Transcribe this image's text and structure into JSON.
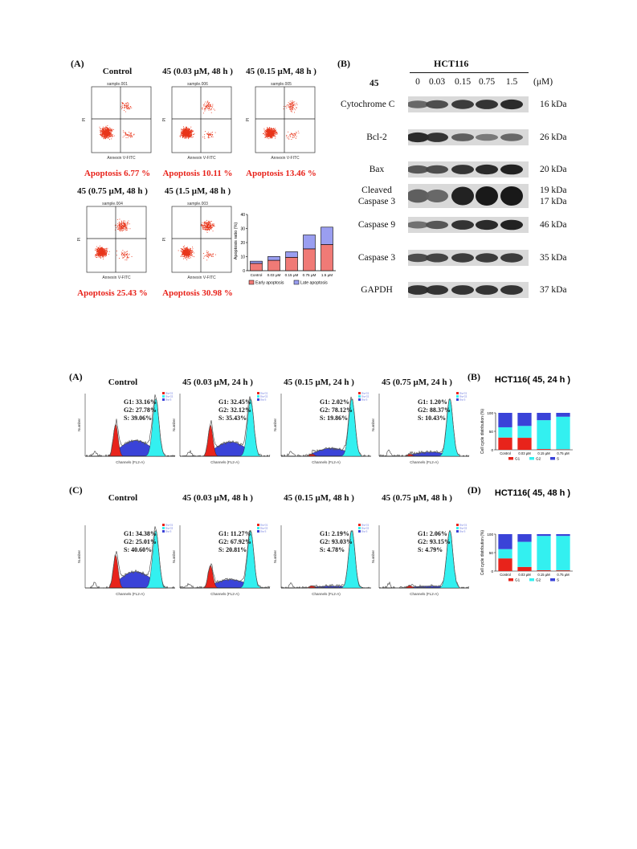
{
  "fig1": {
    "panelA": "(A)",
    "panelB": "(B)",
    "flow_titles": [
      "Control",
      "45 (0.03 μM, 48 h )",
      "45 (0.15 μM, 48 h )",
      "45 (0.75 μM, 48 h )",
      "45 (1.5 μM, 48 h )"
    ],
    "sample_names": [
      "sample.001",
      "sample.006",
      "sample.005",
      "sample.004",
      "sample.003"
    ],
    "apoptosis_labels": [
      "Apoptosis 6.77 %",
      "Apoptosis 10.11 %",
      "Apoptosis 13.46 %",
      "Apoptosis 25.43 %",
      "Apoptosis 30.98 %"
    ],
    "flow_xlabel": "Annexin V-FITC",
    "flow_ylabel": "PI"
  },
  "western": {
    "cell_line": "HCT116",
    "compound": "45",
    "doses": [
      "0",
      "0.03",
      "0.15",
      "0.75",
      "1.5"
    ],
    "unit": "(μM)",
    "proteins": [
      {
        "name": "Cytochrome C",
        "kda": "16 kDa",
        "intensity": [
          0.55,
          0.7,
          0.8,
          0.85,
          0.9
        ]
      },
      {
        "name": "Bcl-2",
        "kda": "26 kDa",
        "intensity": [
          0.9,
          0.85,
          0.6,
          0.45,
          0.55
        ]
      },
      {
        "name": "Bax",
        "kda": "20 kDa",
        "intensity": [
          0.65,
          0.7,
          0.85,
          0.9,
          0.95
        ]
      },
      {
        "name": "Cleaved",
        "name2": "Caspase 3",
        "kda": "19 kDa",
        "kda2": "17 kDa",
        "intensity": [
          0.6,
          0.55,
          0.95,
          1.0,
          1.0
        ]
      },
      {
        "name": "Caspase 9",
        "kda": "46 kDa",
        "intensity": [
          0.5,
          0.65,
          0.85,
          0.9,
          0.95
        ]
      },
      {
        "name": "Caspase 3",
        "kda": "35 kDa",
        "intensity": [
          0.7,
          0.75,
          0.8,
          0.8,
          0.8
        ]
      },
      {
        "name": "GAPDH",
        "kda": "37 kDa",
        "intensity": [
          0.85,
          0.85,
          0.85,
          0.85,
          0.85
        ]
      }
    ]
  },
  "chart_data": [
    {
      "type": "bar",
      "stacked": true,
      "ylabel": "Apoptosis ratio (%)",
      "categories": [
        "Control",
        "0.03 μM",
        "0.15 μM",
        "0.75 μM",
        "1.5 μM"
      ],
      "series": [
        {
          "name": "Early apoptosis",
          "color": "#f07a76",
          "values": [
            5.2,
            7.4,
            9.5,
            15.5,
            18.6
          ]
        },
        {
          "name": "Late apoptosis",
          "color": "#9a9ef0",
          "values": [
            1.57,
            2.71,
            3.96,
            9.93,
            12.38
          ]
        }
      ],
      "ylim": [
        0,
        40
      ],
      "yticks": [
        "0",
        "10",
        "20",
        "30",
        "40"
      ]
    },
    {
      "type": "bar",
      "stacked": true,
      "title": "HCT116( 45, 24 h )",
      "ylabel": "Cell cycle distribution (%)",
      "categories": [
        "Control",
        "0.03 μM",
        "0.15 μM",
        "0.75 μM"
      ],
      "series": [
        {
          "name": "G1",
          "color": "#e8231b",
          "values": [
            33.16,
            32.45,
            2.02,
            1.2
          ]
        },
        {
          "name": "G2",
          "color": "#33f0f0",
          "values": [
            27.78,
            32.12,
            78.12,
            88.37
          ]
        },
        {
          "name": "S",
          "color": "#3a43d8",
          "values": [
            39.06,
            35.43,
            19.86,
            10.43
          ]
        }
      ],
      "ylim": [
        0,
        100
      ],
      "yticks": [
        "0",
        "50",
        "100"
      ]
    },
    {
      "type": "bar",
      "stacked": true,
      "title": "HCT116( 45, 48 h )",
      "ylabel": "Cell cycle distribution (%)",
      "categories": [
        "Control",
        "0.03 μM",
        "0.15 μM",
        "0.75 μM"
      ],
      "series": [
        {
          "name": "G1",
          "color": "#e8231b",
          "values": [
            34.38,
            11.27,
            2.19,
            2.06
          ]
        },
        {
          "name": "G2",
          "color": "#33f0f0",
          "values": [
            25.01,
            67.92,
            93.03,
            93.15
          ]
        },
        {
          "name": "S",
          "color": "#3a43d8",
          "values": [
            40.6,
            20.81,
            4.78,
            4.79
          ]
        }
      ],
      "ylim": [
        0,
        100
      ],
      "yticks": [
        "0",
        "50",
        "100"
      ]
    }
  ],
  "fig2": {
    "panelA": "(A)",
    "panelB": "(B)",
    "panelC": "(C)",
    "panelD": "(D)",
    "xlabel": "Channels (FL2-A)",
    "ylabel": "Number",
    "legend_small": [
      "Dip G1",
      "Dip G2",
      "Dip S"
    ],
    "row24": [
      {
        "title": "Control",
        "g1": "G1: 33.16%",
        "g2": "G2: 27.78%",
        "s": "S:  39.06%"
      },
      {
        "title": "45 (0.03 μM, 24 h )",
        "g1": "G1: 32.45%",
        "g2": "G2: 32.12%",
        "s": "S:  35.43%"
      },
      {
        "title": "45 (0.15 μM, 24 h )",
        "g1": "G1: 2.02%",
        "g2": "G2: 78.12%",
        "s": "S:  19.86%"
      },
      {
        "title": "45 (0.75 μM, 24 h )",
        "g1": "G1: 1.20%",
        "g2": "G2: 88.37%",
        "s": "S:  10.43%"
      }
    ],
    "row48": [
      {
        "title": "Control",
        "g1": "G1: 34.38%",
        "g2": "G2: 25.01%",
        "s": "S:  40.60%"
      },
      {
        "title": "45 (0.03 μM, 48 h )",
        "g1": "G1: 11.27%",
        "g2": "G2: 67.92%",
        "s": "S:  20.81%"
      },
      {
        "title": "45 (0.15 μM, 48 h )",
        "g1": "G1: 2.19%",
        "g2": "G2: 93.03%",
        "s": "S:  4.78%"
      },
      {
        "title": "45 (0.75 μM, 48 h )",
        "g1": "G1: 2.06%",
        "g2": "G2: 93.15%",
        "s": "S:  4.79%"
      }
    ]
  }
}
